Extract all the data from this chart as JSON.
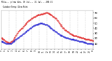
{
  "bg_color": "#ffffff",
  "plot_bg_color": "#ffffff",
  "text_color": "#000000",
  "grid_color": "#aaaaaa",
  "temp_color": "#dd0000",
  "dew_color": "#0000cc",
  "ylim": [
    0,
    75
  ],
  "yticks": [
    10,
    20,
    30,
    40,
    50,
    60,
    70
  ],
  "ytick_labels": [
    "10",
    "20",
    "30",
    "40",
    "50",
    "60",
    "70"
  ],
  "temp_data": [
    22,
    21,
    20,
    19,
    18,
    17,
    16,
    15,
    14,
    13,
    13,
    12,
    12,
    12,
    13,
    14,
    15,
    16,
    17,
    19,
    21,
    23,
    25,
    27,
    29,
    31,
    33,
    35,
    37,
    38,
    39,
    40,
    41,
    43,
    44,
    46,
    47,
    49,
    50,
    51,
    53,
    54,
    55,
    56,
    57,
    58,
    59,
    60,
    61,
    62,
    62,
    63,
    64,
    65,
    65,
    66,
    66,
    67,
    67,
    67,
    68,
    68,
    68,
    68,
    69,
    69,
    69,
    70,
    70,
    70,
    70,
    69,
    69,
    68,
    68,
    67,
    66,
    65,
    64,
    63,
    62,
    61,
    60,
    59,
    57,
    56,
    54,
    52,
    50,
    48,
    47,
    45,
    44,
    42,
    41,
    40,
    38,
    37,
    36,
    35,
    34,
    33,
    32,
    31,
    30,
    29,
    28,
    28,
    27,
    27,
    26,
    26,
    25,
    25,
    25,
    24,
    24,
    24,
    23,
    23,
    23,
    22,
    22,
    21,
    21,
    20,
    20,
    20,
    19,
    19,
    19,
    18,
    18,
    18,
    17,
    17,
    17,
    17,
    16,
    16
  ],
  "dew_data": [
    15,
    14,
    14,
    13,
    13,
    12,
    12,
    11,
    11,
    11,
    10,
    10,
    10,
    10,
    10,
    11,
    12,
    13,
    14,
    15,
    16,
    17,
    18,
    19,
    20,
    21,
    22,
    23,
    24,
    25,
    26,
    27,
    28,
    29,
    30,
    31,
    32,
    33,
    34,
    35,
    36,
    37,
    38,
    39,
    40,
    41,
    42,
    43,
    44,
    45,
    46,
    46,
    47,
    47,
    48,
    48,
    49,
    49,
    49,
    50,
    50,
    50,
    50,
    49,
    49,
    49,
    48,
    48,
    47,
    47,
    46,
    45,
    44,
    43,
    42,
    41,
    40,
    39,
    38,
    37,
    36,
    35,
    34,
    33,
    32,
    31,
    30,
    29,
    28,
    27,
    27,
    26,
    25,
    25,
    24,
    24,
    23,
    23,
    22,
    22,
    21,
    21,
    20,
    20,
    20,
    19,
    19,
    19,
    18,
    18,
    18,
    17,
    17,
    17,
    17,
    16,
    16,
    16,
    15,
    15,
    15,
    14,
    14,
    14,
    13,
    13,
    13,
    12,
    12,
    12,
    11,
    11,
    11,
    11,
    10,
    10,
    10,
    10,
    9,
    9
  ],
  "num_vticks": 12,
  "xlabels": [
    "0",
    "",
    "1",
    "",
    "2",
    "",
    "3",
    "",
    "4",
    "",
    "5",
    "",
    "6",
    "",
    "7",
    "",
    "8",
    "",
    "9",
    "",
    "10",
    "",
    "11",
    "",
    "12",
    "",
    "13",
    "",
    "14",
    "",
    "15",
    "",
    "16",
    "",
    "17",
    "",
    "18",
    "",
    "19",
    "",
    "20",
    "",
    "21",
    "",
    "22",
    "",
    "23",
    "",
    "0"
  ]
}
